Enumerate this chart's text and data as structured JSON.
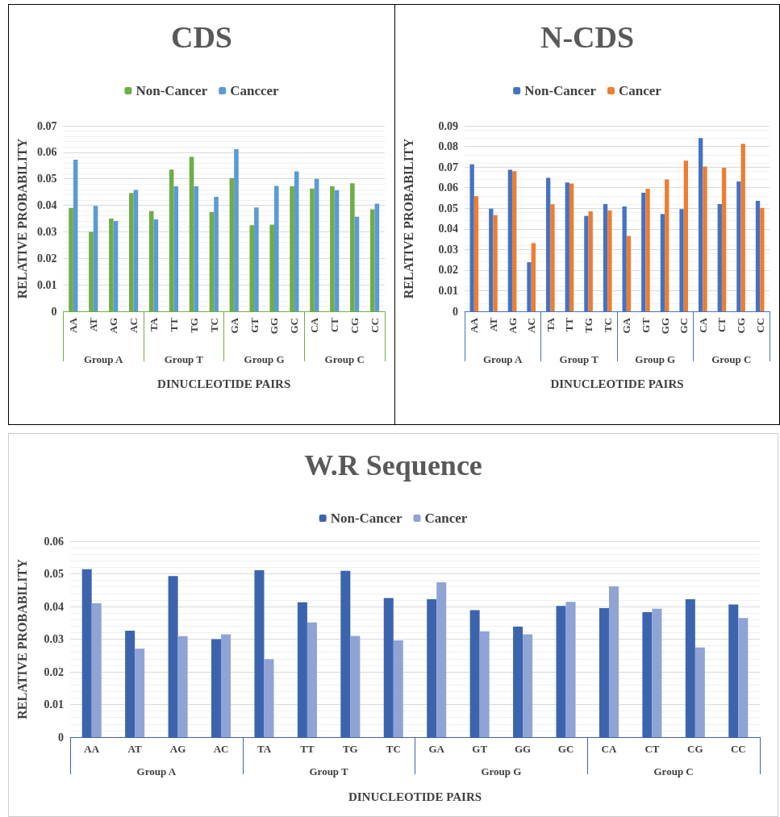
{
  "chart_data": [
    {
      "type": "bar",
      "title": "CDS",
      "xlabel": "DINUCLEOTIDE PAIRS",
      "ylabel": "RELATIVE PROBABILITY",
      "categories": [
        "AA",
        "AT",
        "AG",
        "AC",
        "TA",
        "TT",
        "TG",
        "TC",
        "GA",
        "GT",
        "GG",
        "GC",
        "CA",
        "CT",
        "CG",
        "CC"
      ],
      "series": [
        {
          "name": "Non-Cancer",
          "color": "#70ad47",
          "values": [
            0.039,
            0.03,
            0.035,
            0.0447,
            0.0378,
            0.0535,
            0.0583,
            0.0375,
            0.0503,
            0.0325,
            0.0327,
            0.0472,
            0.0463,
            0.0472,
            0.0483,
            0.0385
          ]
        },
        {
          "name": "Canccer",
          "color": "#5b9bd5",
          "values": [
            0.0572,
            0.0398,
            0.0341,
            0.0458,
            0.0347,
            0.0472,
            0.0472,
            0.0432,
            0.0612,
            0.0392,
            0.0473,
            0.0528,
            0.05,
            0.0457,
            0.0357,
            0.0406
          ]
        }
      ],
      "annotations": [
        "Group A",
        "Group T",
        "Group G",
        "Group C"
      ],
      "ylim": [
        0,
        0.07
      ],
      "yticks": [
        0,
        0.01,
        0.02,
        0.03,
        0.04,
        0.05,
        0.06,
        0.07
      ],
      "grid": "y",
      "legend": "top"
    },
    {
      "type": "bar",
      "title": "N-CDS",
      "xlabel": "DINUCLEOTIDE PAIRS",
      "ylabel": "RELATIVE PROBABILITY",
      "categories": [
        "AA",
        "AT",
        "AG",
        "AC",
        "TA",
        "TT",
        "TG",
        "TC",
        "GA",
        "GT",
        "GG",
        "GC",
        "CA",
        "CT",
        "CG",
        "CC"
      ],
      "series": [
        {
          "name": "Non-Cancer",
          "color": "#4472c4",
          "values": [
            0.0713,
            0.0498,
            0.0687,
            0.0238,
            0.0648,
            0.0625,
            0.0463,
            0.052,
            0.0509,
            0.0575,
            0.0472,
            0.0496,
            0.084,
            0.052,
            0.063,
            0.0536
          ]
        },
        {
          "name": "Cancer",
          "color": "#ed7d31",
          "values": [
            0.0559,
            0.0467,
            0.068,
            0.0331,
            0.0519,
            0.062,
            0.0485,
            0.049,
            0.0366,
            0.0595,
            0.064,
            0.0731,
            0.0702,
            0.0697,
            0.0813,
            0.0502
          ]
        }
      ],
      "annotations": [
        "Group A",
        "Group T",
        "Group G",
        "Group C"
      ],
      "ylim": [
        0,
        0.09
      ],
      "yticks": [
        0,
        0.01,
        0.02,
        0.03,
        0.04,
        0.05,
        0.06,
        0.07,
        0.08,
        0.09
      ],
      "grid": "y",
      "legend": "top"
    },
    {
      "type": "bar",
      "title": "W.R Sequence",
      "xlabel": "DINUCLEOTIDE PAIRS",
      "ylabel": "RELATIVE PROBABILITY",
      "categories": [
        "AA",
        "AT",
        "AG",
        "AC",
        "TA",
        "TT",
        "TG",
        "TC",
        "GA",
        "GT",
        "GG",
        "GC",
        "CA",
        "CT",
        "CG",
        "CC"
      ],
      "series": [
        {
          "name": "Non-Cancer",
          "color": "#3c64ae",
          "values": [
            0.0514,
            0.0326,
            0.0493,
            0.03,
            0.0511,
            0.0413,
            0.0509,
            0.0426,
            0.0422,
            0.0389,
            0.0338,
            0.0402,
            0.0395,
            0.0383,
            0.0422,
            0.0406
          ]
        },
        {
          "name": "Cancer",
          "color": "#8fa3d4",
          "values": [
            0.041,
            0.0271,
            0.0309,
            0.0315,
            0.0239,
            0.0351,
            0.031,
            0.0296,
            0.0474,
            0.0324,
            0.0315,
            0.0414,
            0.0462,
            0.0393,
            0.0275,
            0.0365
          ]
        }
      ],
      "annotations": [
        "Group A",
        "Group T",
        "Group G",
        "Group C"
      ],
      "ylim": [
        0,
        0.06
      ],
      "yticks": [
        0,
        0.01,
        0.02,
        0.03,
        0.04,
        0.05,
        0.06
      ],
      "grid": "y",
      "legend": "top"
    }
  ]
}
